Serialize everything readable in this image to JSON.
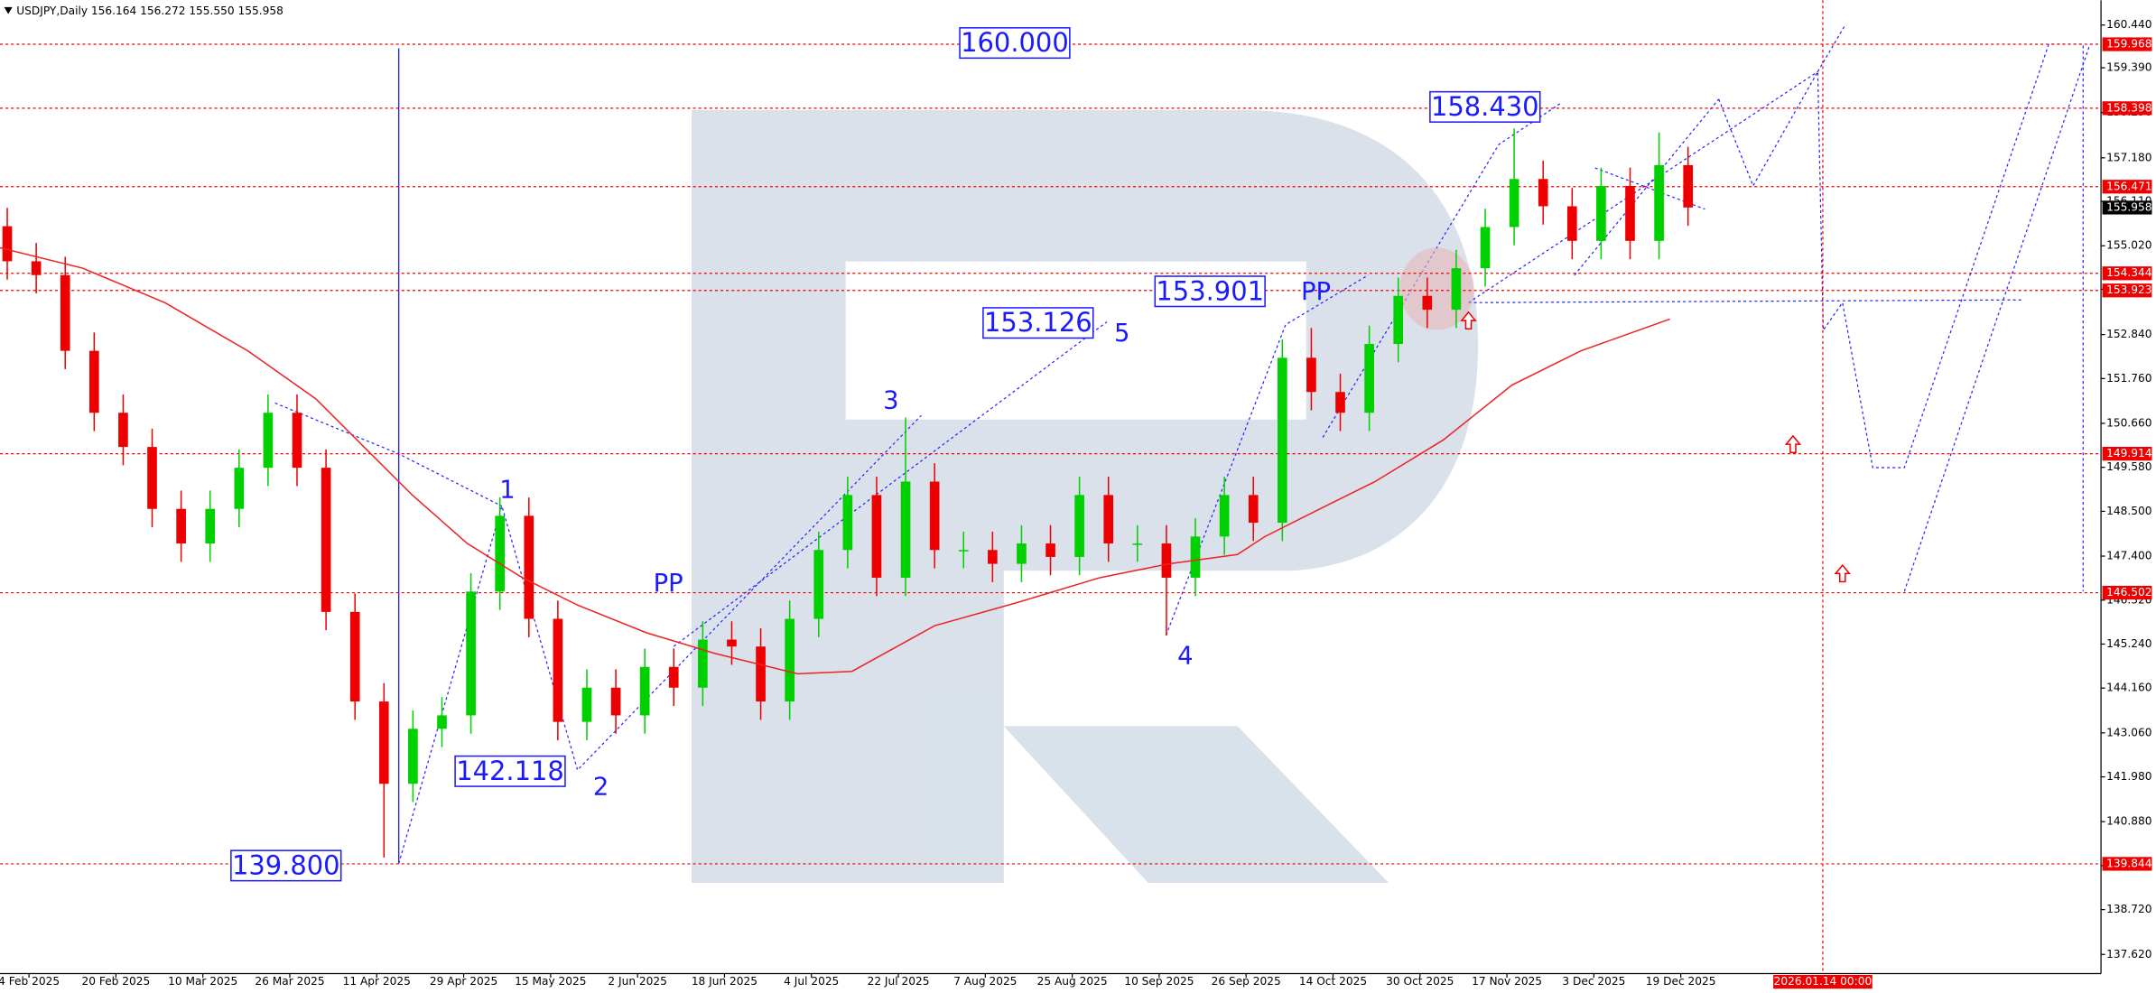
{
  "chart_data": {
    "type": "candlestick",
    "title": "USDJPY,Daily  156.164 156.272 155.550 155.958",
    "up_color": "#00d000",
    "down_color": "#ee0000",
    "xlim": [
      0,
      290
    ],
    "ylim": [
      137.15,
      161.05
    ],
    "xticks": [
      {
        "value": 4,
        "label": "4 Feb 2025"
      },
      {
        "value": 16,
        "label": "20 Feb 2025"
      },
      {
        "value": 28,
        "label": "10 Mar 2025"
      },
      {
        "value": 40,
        "label": "26 Mar 2025"
      },
      {
        "value": 52,
        "label": "11 Apr 2025"
      },
      {
        "value": 64,
        "label": "29 Apr 2025"
      },
      {
        "value": 76,
        "label": "15 May 2025"
      },
      {
        "value": 88,
        "label": "2 Jun 2025"
      },
      {
        "value": 100,
        "label": "18 Jun 2025"
      },
      {
        "value": 112,
        "label": "4 Jul 2025"
      },
      {
        "value": 124,
        "label": "22 Jul 2025"
      },
      {
        "value": 136,
        "label": "7 Aug 2025"
      },
      {
        "value": 148,
        "label": "25 Aug 2025"
      },
      {
        "value": 160,
        "label": "10 Sep 2025"
      },
      {
        "value": 172,
        "label": "26 Sep 2025"
      },
      {
        "value": 184,
        "label": "14 Oct 2025"
      },
      {
        "value": 196,
        "label": "30 Oct 2025"
      },
      {
        "value": 208,
        "label": "17 Nov 2025"
      },
      {
        "value": 220,
        "label": "3 Dec 2025"
      },
      {
        "value": 232,
        "label": "19 Dec 2025"
      }
    ],
    "cursor_date": {
      "value": 251.6,
      "label": "2026.01.14 00:00"
    },
    "yticks": [
      {
        "value": 160.44,
        "label": "160.440"
      },
      {
        "value": 159.39,
        "label": "159.390"
      },
      {
        "value": 158.29,
        "label": "158.290"
      },
      {
        "value": 157.18,
        "label": "157.180"
      },
      {
        "value": 156.11,
        "label": "156.110"
      },
      {
        "value": 155.02,
        "label": "155.020"
      },
      {
        "value": 153.95,
        "label": "153.950"
      },
      {
        "value": 152.84,
        "label": "152.840"
      },
      {
        "value": 151.76,
        "label": "151.760"
      },
      {
        "value": 150.66,
        "label": "150.660"
      },
      {
        "value": 149.58,
        "label": "149.580"
      },
      {
        "value": 148.5,
        "label": "148.500"
      },
      {
        "value": 147.4,
        "label": "147.400"
      },
      {
        "value": 146.32,
        "label": "146.320"
      },
      {
        "value": 145.24,
        "label": "145.240"
      },
      {
        "value": 144.16,
        "label": "144.160"
      },
      {
        "value": 143.06,
        "label": "143.060"
      },
      {
        "value": 141.98,
        "label": "141.980"
      },
      {
        "value": 140.88,
        "label": "140.880"
      },
      {
        "value": 139.8,
        "label": "139.800"
      },
      {
        "value": 138.72,
        "label": "138.720"
      },
      {
        "value": 137.62,
        "label": "137.620"
      }
    ],
    "x": [
      1,
      5,
      9,
      13,
      17,
      21,
      25,
      29,
      33,
      37,
      41,
      45,
      49,
      53,
      57,
      61,
      65,
      69,
      73,
      77,
      81,
      85,
      89,
      93,
      97,
      101,
      105,
      109,
      113,
      117,
      121,
      125,
      129,
      133,
      137,
      141,
      145,
      149,
      153,
      157,
      161,
      165,
      169,
      173,
      177,
      181,
      185,
      189,
      193,
      197,
      201,
      205,
      209,
      213,
      217,
      221,
      225,
      229,
      233
    ],
    "open": [
      155.5,
      154.64,
      154.3,
      152.44,
      150.92,
      150.08,
      148.56,
      147.71,
      148.56,
      149.57,
      150.92,
      149.57,
      146.03,
      143.83,
      141.81,
      143.16,
      143.49,
      146.53,
      148.39,
      145.86,
      143.33,
      144.17,
      143.49,
      144.68,
      144.17,
      145.35,
      145.18,
      143.83,
      145.86,
      147.55,
      148.9,
      146.87,
      149.23,
      147.55,
      147.55,
      147.21,
      147.71,
      147.38,
      148.9,
      147.71,
      147.71,
      146.87,
      147.88,
      148.9,
      148.22,
      152.27,
      151.43,
      150.92,
      152.61,
      153.79,
      153.45,
      154.47,
      155.48,
      156.66,
      155.99,
      155.14,
      156.49,
      155.14,
      157.0
    ],
    "high": [
      155.95,
      155.09,
      154.75,
      152.89,
      151.37,
      150.53,
      149.01,
      149.01,
      150.02,
      151.37,
      151.37,
      150.02,
      146.48,
      144.28,
      143.61,
      143.94,
      146.98,
      148.84,
      148.84,
      146.31,
      144.62,
      144.62,
      145.13,
      145.13,
      145.8,
      145.8,
      145.63,
      146.31,
      148.0,
      149.35,
      149.35,
      150.8,
      149.68,
      148.0,
      148.0,
      148.16,
      148.16,
      149.35,
      149.35,
      148.16,
      148.16,
      148.33,
      149.35,
      149.35,
      152.72,
      153.0,
      151.88,
      153.06,
      154.24,
      154.24,
      154.92,
      155.93,
      157.9,
      157.11,
      156.44,
      156.94,
      156.94,
      157.8,
      157.45
    ],
    "low": [
      154.19,
      153.85,
      151.99,
      150.47,
      149.63,
      148.11,
      147.26,
      147.26,
      148.11,
      149.12,
      149.12,
      145.58,
      143.38,
      140.0,
      141.36,
      142.71,
      143.04,
      146.08,
      145.41,
      142.88,
      142.88,
      143.04,
      143.04,
      143.72,
      143.72,
      144.73,
      143.38,
      143.38,
      145.41,
      147.1,
      146.42,
      146.42,
      147.1,
      147.1,
      146.76,
      146.76,
      146.93,
      146.93,
      147.26,
      147.26,
      145.45,
      146.42,
      147.43,
      147.77,
      147.77,
      150.98,
      150.47,
      150.47,
      152.16,
      153.0,
      153.0,
      154.02,
      155.03,
      155.54,
      154.69,
      154.69,
      154.69,
      154.69,
      155.51
    ],
    "close": [
      154.64,
      154.3,
      152.44,
      150.92,
      150.08,
      148.56,
      147.71,
      148.56,
      149.57,
      150.92,
      149.57,
      146.03,
      143.83,
      141.81,
      143.16,
      143.49,
      146.53,
      148.39,
      145.86,
      143.33,
      144.17,
      143.49,
      144.68,
      144.17,
      145.35,
      145.18,
      143.83,
      145.86,
      147.55,
      148.9,
      146.87,
      149.23,
      147.55,
      147.55,
      147.21,
      147.71,
      147.38,
      148.9,
      147.71,
      147.71,
      146.87,
      147.88,
      148.9,
      148.22,
      152.27,
      151.43,
      150.92,
      152.61,
      153.79,
      153.45,
      154.47,
      155.48,
      156.66,
      155.99,
      155.14,
      156.49,
      155.14,
      157.0,
      155.96
    ],
    "ma": {
      "color": "#ee2222",
      "x": [
        0,
        11.4,
        22.8,
        34.2,
        43.6,
        51.2,
        56.9,
        64.5,
        72.1,
        79.7,
        89.2,
        98.7,
        110.1,
        117.6,
        129,
        140.4,
        151.8,
        161.3,
        170.8,
        174.6,
        182.2,
        189.8,
        199.2,
        208.7,
        218.2,
        230.5
      ],
      "values": [
        154.97,
        154.47,
        153.62,
        152.44,
        151.26,
        149.91,
        148.9,
        147.71,
        146.87,
        146.2,
        145.52,
        145.01,
        144.51,
        144.57,
        145.69,
        146.26,
        146.87,
        147.21,
        147.44,
        147.88,
        148.56,
        149.23,
        150.25,
        151.6,
        152.44,
        153.22
      ]
    },
    "levels": [
      {
        "value": 159.968,
        "label": "159.968"
      },
      {
        "value": 158.398,
        "label": "158.398"
      },
      {
        "value": 156.471,
        "label": "156.471"
      },
      {
        "value": 154.344,
        "label": "154.344"
      },
      {
        "value": 153.923,
        "label": "153.923"
      },
      {
        "value": 149.914,
        "label": "149.914"
      },
      {
        "value": 146.502,
        "label": "146.502"
      },
      {
        "value": 139.844,
        "label": "139.844"
      }
    ],
    "level_color": "#ee0000",
    "current_price": {
      "value": 155.958,
      "label": "155.958"
    },
    "price_labels": [
      {
        "value": 160.0,
        "label": "160.000"
      },
      {
        "value": 158.43,
        "label": "158.430"
      },
      {
        "value": 153.901,
        "label": "153.901"
      },
      {
        "value": 153.126,
        "label": "153.126"
      },
      {
        "value": 142.118,
        "label": "142.118"
      },
      {
        "value": 139.8,
        "label": "139.800"
      }
    ],
    "wave_labels": [
      "1",
      "2",
      "3",
      "4",
      "5",
      "PP",
      "PP"
    ],
    "annotation_color": "#1a1aff"
  }
}
